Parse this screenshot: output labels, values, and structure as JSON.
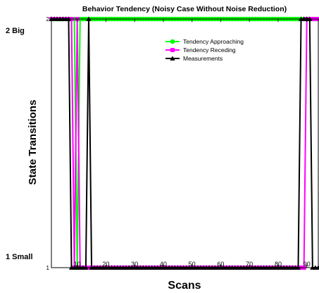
{
  "chart_data": {
    "type": "line",
    "title": "Behavior Tendency (Noisy Case Without Noise Reduction)",
    "xlabel": "Scans",
    "ylabel": "State Transitions",
    "xlim": [
      1,
      94
    ],
    "ylim": [
      1,
      2
    ],
    "x_ticks": [
      10,
      20,
      30,
      40,
      50,
      60,
      70,
      80,
      90
    ],
    "y_tick_values": [
      1,
      2
    ],
    "y_tick_inner_labels": [
      "1",
      "2"
    ],
    "y_category_labels": [
      "1 Small",
      "2 Big"
    ],
    "grid": false,
    "legend_position": "top-right",
    "series": [
      {
        "name": "Tendency Approaching",
        "color": "#00ff00",
        "marker": "circle",
        "points": [
          [
            1,
            2
          ],
          [
            2,
            2
          ],
          [
            3,
            2
          ],
          [
            4,
            2
          ],
          [
            5,
            2
          ],
          [
            6,
            2
          ],
          [
            7,
            2
          ],
          [
            8,
            2
          ],
          [
            9,
            2
          ],
          [
            10,
            1
          ],
          [
            11,
            2
          ],
          [
            12,
            2
          ],
          [
            13,
            2
          ],
          [
            14,
            2
          ],
          [
            15,
            2
          ],
          [
            16,
            2
          ],
          [
            17,
            2
          ],
          [
            18,
            2
          ],
          [
            19,
            2
          ],
          [
            20,
            2
          ],
          [
            21,
            2
          ],
          [
            22,
            2
          ],
          [
            23,
            2
          ],
          [
            24,
            2
          ],
          [
            25,
            2
          ],
          [
            26,
            2
          ],
          [
            27,
            2
          ],
          [
            28,
            2
          ],
          [
            29,
            2
          ],
          [
            30,
            2
          ],
          [
            31,
            2
          ],
          [
            32,
            2
          ],
          [
            33,
            2
          ],
          [
            34,
            2
          ],
          [
            35,
            2
          ],
          [
            36,
            2
          ],
          [
            37,
            2
          ],
          [
            38,
            2
          ],
          [
            39,
            2
          ],
          [
            40,
            2
          ],
          [
            41,
            2
          ],
          [
            42,
            2
          ],
          [
            43,
            2
          ],
          [
            44,
            2
          ],
          [
            45,
            2
          ],
          [
            46,
            2
          ],
          [
            47,
            2
          ],
          [
            48,
            2
          ],
          [
            49,
            2
          ],
          [
            50,
            2
          ],
          [
            51,
            2
          ],
          [
            52,
            2
          ],
          [
            53,
            2
          ],
          [
            54,
            2
          ],
          [
            55,
            2
          ],
          [
            56,
            2
          ],
          [
            57,
            2
          ],
          [
            58,
            2
          ],
          [
            59,
            2
          ],
          [
            60,
            2
          ],
          [
            61,
            2
          ],
          [
            62,
            2
          ],
          [
            63,
            2
          ],
          [
            64,
            2
          ],
          [
            65,
            2
          ],
          [
            66,
            2
          ],
          [
            67,
            2
          ],
          [
            68,
            2
          ],
          [
            69,
            2
          ],
          [
            70,
            2
          ],
          [
            71,
            2
          ],
          [
            72,
            2
          ],
          [
            73,
            2
          ],
          [
            74,
            2
          ],
          [
            75,
            2
          ],
          [
            76,
            2
          ],
          [
            77,
            2
          ],
          [
            78,
            2
          ],
          [
            79,
            2
          ],
          [
            80,
            2
          ],
          [
            81,
            2
          ],
          [
            82,
            2
          ],
          [
            83,
            2
          ],
          [
            84,
            2
          ],
          [
            85,
            2
          ],
          [
            86,
            2
          ],
          [
            87,
            2
          ],
          [
            88,
            2
          ],
          [
            89,
            2
          ],
          [
            90,
            2
          ],
          [
            91,
            2
          ],
          [
            92,
            2
          ],
          [
            93,
            2
          ],
          [
            94,
            2
          ]
        ]
      },
      {
        "name": "Tendency Receding",
        "color": "#ff00ff",
        "marker": "square",
        "points": [
          [
            1,
            2
          ],
          [
            2,
            2
          ],
          [
            3,
            2
          ],
          [
            4,
            2
          ],
          [
            5,
            2
          ],
          [
            6,
            2
          ],
          [
            7,
            2
          ],
          [
            8,
            2
          ],
          [
            9,
            1
          ],
          [
            10,
            2
          ],
          [
            11,
            1
          ],
          [
            12,
            1
          ],
          [
            13,
            1
          ],
          [
            14,
            1
          ],
          [
            15,
            1
          ],
          [
            16,
            1
          ],
          [
            17,
            1
          ],
          [
            18,
            1
          ],
          [
            19,
            1
          ],
          [
            20,
            1
          ],
          [
            21,
            1
          ],
          [
            22,
            1
          ],
          [
            23,
            1
          ],
          [
            24,
            1
          ],
          [
            25,
            1
          ],
          [
            26,
            1
          ],
          [
            27,
            1
          ],
          [
            28,
            1
          ],
          [
            29,
            1
          ],
          [
            30,
            1
          ],
          [
            31,
            1
          ],
          [
            32,
            1
          ],
          [
            33,
            1
          ],
          [
            34,
            1
          ],
          [
            35,
            1
          ],
          [
            36,
            1
          ],
          [
            37,
            1
          ],
          [
            38,
            1
          ],
          [
            39,
            1
          ],
          [
            40,
            1
          ],
          [
            41,
            1
          ],
          [
            42,
            1
          ],
          [
            43,
            1
          ],
          [
            44,
            1
          ],
          [
            45,
            1
          ],
          [
            46,
            1
          ],
          [
            47,
            1
          ],
          [
            48,
            1
          ],
          [
            49,
            1
          ],
          [
            50,
            1
          ],
          [
            51,
            1
          ],
          [
            52,
            1
          ],
          [
            53,
            1
          ],
          [
            54,
            1
          ],
          [
            55,
            1
          ],
          [
            56,
            1
          ],
          [
            57,
            1
          ],
          [
            58,
            1
          ],
          [
            59,
            1
          ],
          [
            60,
            1
          ],
          [
            61,
            1
          ],
          [
            62,
            1
          ],
          [
            63,
            1
          ],
          [
            64,
            1
          ],
          [
            65,
            1
          ],
          [
            66,
            1
          ],
          [
            67,
            1
          ],
          [
            68,
            1
          ],
          [
            69,
            1
          ],
          [
            70,
            1
          ],
          [
            71,
            1
          ],
          [
            72,
            1
          ],
          [
            73,
            1
          ],
          [
            74,
            1
          ],
          [
            75,
            1
          ],
          [
            76,
            1
          ],
          [
            77,
            1
          ],
          [
            78,
            1
          ],
          [
            79,
            1
          ],
          [
            80,
            1
          ],
          [
            81,
            1
          ],
          [
            82,
            1
          ],
          [
            83,
            1
          ],
          [
            84,
            1
          ],
          [
            85,
            1
          ],
          [
            86,
            1
          ],
          [
            87,
            1
          ],
          [
            88,
            1
          ],
          [
            89,
            1
          ],
          [
            90,
            2
          ],
          [
            91,
            2
          ],
          [
            92,
            2
          ],
          [
            93,
            2
          ],
          [
            94,
            2
          ]
        ]
      },
      {
        "name": "Measurements",
        "color": "#000000",
        "marker": "triangle",
        "points": [
          [
            1,
            2
          ],
          [
            2,
            2
          ],
          [
            3,
            2
          ],
          [
            4,
            2
          ],
          [
            5,
            2
          ],
          [
            6,
            2
          ],
          [
            7,
            2
          ],
          [
            8,
            1
          ],
          [
            9,
            1
          ],
          [
            10,
            1
          ],
          [
            11,
            1
          ],
          [
            12,
            1
          ],
          [
            13,
            1
          ],
          [
            14,
            2
          ],
          [
            15,
            1
          ],
          [
            16,
            1
          ],
          [
            17,
            1
          ],
          [
            18,
            1
          ],
          [
            19,
            1
          ],
          [
            20,
            1
          ],
          [
            21,
            1
          ],
          [
            22,
            1
          ],
          [
            23,
            1
          ],
          [
            24,
            1
          ],
          [
            25,
            1
          ],
          [
            26,
            1
          ],
          [
            27,
            1
          ],
          [
            28,
            1
          ],
          [
            29,
            1
          ],
          [
            30,
            1
          ],
          [
            31,
            1
          ],
          [
            32,
            1
          ],
          [
            33,
            1
          ],
          [
            34,
            1
          ],
          [
            35,
            1
          ],
          [
            36,
            1
          ],
          [
            37,
            1
          ],
          [
            38,
            1
          ],
          [
            39,
            1
          ],
          [
            40,
            1
          ],
          [
            41,
            1
          ],
          [
            42,
            1
          ],
          [
            43,
            1
          ],
          [
            44,
            1
          ],
          [
            45,
            1
          ],
          [
            46,
            1
          ],
          [
            47,
            1
          ],
          [
            48,
            1
          ],
          [
            49,
            1
          ],
          [
            50,
            1
          ],
          [
            51,
            1
          ],
          [
            52,
            1
          ],
          [
            53,
            1
          ],
          [
            54,
            1
          ],
          [
            55,
            1
          ],
          [
            56,
            1
          ],
          [
            57,
            1
          ],
          [
            58,
            1
          ],
          [
            59,
            1
          ],
          [
            60,
            1
          ],
          [
            61,
            1
          ],
          [
            62,
            1
          ],
          [
            63,
            1
          ],
          [
            64,
            1
          ],
          [
            65,
            1
          ],
          [
            66,
            1
          ],
          [
            67,
            1
          ],
          [
            68,
            1
          ],
          [
            69,
            1
          ],
          [
            70,
            1
          ],
          [
            71,
            1
          ],
          [
            72,
            1
          ],
          [
            73,
            1
          ],
          [
            74,
            1
          ],
          [
            75,
            1
          ],
          [
            76,
            1
          ],
          [
            77,
            1
          ],
          [
            78,
            1
          ],
          [
            79,
            1
          ],
          [
            80,
            1
          ],
          [
            81,
            1
          ],
          [
            82,
            1
          ],
          [
            83,
            1
          ],
          [
            84,
            1
          ],
          [
            85,
            1
          ],
          [
            86,
            1
          ],
          [
            87,
            1
          ],
          [
            88,
            2
          ],
          [
            89,
            2
          ],
          [
            90,
            2
          ],
          [
            91,
            2
          ],
          [
            92,
            1
          ],
          [
            93,
            1
          ],
          [
            94,
            1
          ]
        ]
      }
    ]
  }
}
